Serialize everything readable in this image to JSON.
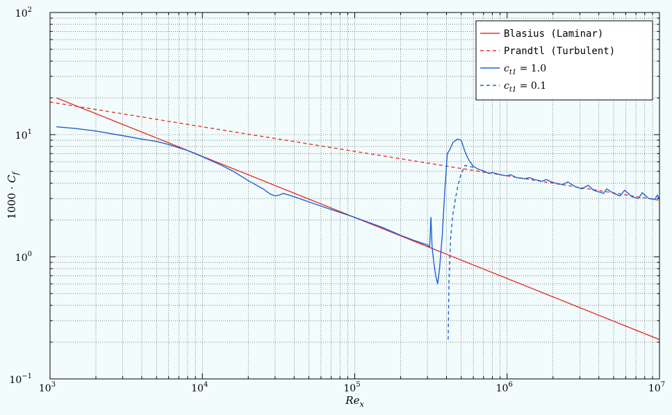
{
  "chart_data": {
    "type": "line",
    "xscale": "log",
    "yscale": "log",
    "xlim": [
      1000,
      10000000
    ],
    "ylim": [
      0.1,
      100
    ],
    "grid": true,
    "xlabel": "Re_x",
    "ylabel": "1000 · C_f",
    "legend_position": "top-right",
    "x_ticks": [
      {
        "base": "10",
        "exp": "3",
        "value": 1000
      },
      {
        "base": "10",
        "exp": "4",
        "value": 10000
      },
      {
        "base": "10",
        "exp": "5",
        "value": 100000
      },
      {
        "base": "10",
        "exp": "6",
        "value": 1000000
      },
      {
        "base": "10",
        "exp": "7",
        "value": 10000000
      }
    ],
    "y_ticks": [
      {
        "base": "10",
        "exp": "−1",
        "value": 0.1
      },
      {
        "base": "10",
        "exp": "0",
        "value": 1
      },
      {
        "base": "10",
        "exp": "1",
        "value": 10
      },
      {
        "base": "10",
        "exp": "2",
        "value": 100
      }
    ],
    "series": [
      {
        "name": "Blasius (Laminar)",
        "color": "#e8322a",
        "dash": "solid",
        "points": [
          [
            1100,
            20.0
          ],
          [
            10000000,
            0.21
          ]
        ]
      },
      {
        "name": "Prandtl (Turbulent)",
        "color": "#e8322a",
        "dash": "dashed",
        "points": [
          [
            1000,
            18.5
          ],
          [
            10000,
            11.6
          ],
          [
            100000,
            7.3
          ],
          [
            1000000,
            4.6
          ],
          [
            10000000,
            2.9
          ]
        ]
      },
      {
        "name": "c_t1 = 1.0",
        "name_math": {
          "var": "c",
          "sub": "t1",
          "rest": " = 1.0"
        },
        "color": "#1f5fd6",
        "dash": "solid",
        "points": [
          [
            1100,
            11.6
          ],
          [
            1500,
            11.2
          ],
          [
            2000,
            10.7
          ],
          [
            3000,
            9.8
          ],
          [
            4000,
            9.2
          ],
          [
            5000,
            8.8
          ],
          [
            6000,
            8.3
          ],
          [
            8000,
            7.4
          ],
          [
            10000,
            6.6
          ],
          [
            13000,
            5.7
          ],
          [
            16000,
            5.0
          ],
          [
            20000,
            4.2
          ],
          [
            25000,
            3.6
          ],
          [
            28000,
            3.25
          ],
          [
            30000,
            3.15
          ],
          [
            32000,
            3.2
          ],
          [
            34000,
            3.3
          ],
          [
            40000,
            3.1
          ],
          [
            60000,
            2.6
          ],
          [
            100000,
            2.1
          ],
          [
            150000,
            1.75
          ],
          [
            200000,
            1.5
          ],
          [
            250000,
            1.35
          ],
          [
            300000,
            1.25
          ],
          [
            310000,
            1.2
          ],
          [
            316000,
            2.1
          ],
          [
            322000,
            1.2
          ],
          [
            330000,
            0.9
          ],
          [
            340000,
            0.7
          ],
          [
            350000,
            0.6
          ],
          [
            360000,
            0.8
          ],
          [
            375000,
            1.5
          ],
          [
            390000,
            3.5
          ],
          [
            405000,
            7.0
          ],
          [
            420000,
            7.5
          ],
          [
            440000,
            8.6
          ],
          [
            470000,
            9.2
          ],
          [
            500000,
            9.0
          ],
          [
            530000,
            7.2
          ],
          [
            560000,
            6.2
          ],
          [
            600000,
            5.5
          ],
          [
            650000,
            5.2
          ],
          [
            700000,
            5.05
          ],
          [
            760000,
            4.8
          ],
          [
            800000,
            4.9
          ],
          [
            900000,
            4.7
          ],
          [
            1000000,
            4.6
          ],
          [
            1050000,
            4.7
          ],
          [
            1150000,
            4.45
          ],
          [
            1300000,
            4.35
          ],
          [
            1400000,
            4.45
          ],
          [
            1500000,
            4.3
          ],
          [
            1700000,
            4.15
          ],
          [
            1800000,
            4.3
          ],
          [
            2000000,
            4.05
          ],
          [
            2300000,
            3.9
          ],
          [
            2500000,
            4.1
          ],
          [
            2800000,
            3.75
          ],
          [
            3100000,
            3.6
          ],
          [
            3400000,
            3.85
          ],
          [
            3700000,
            3.5
          ],
          [
            4300000,
            3.3
          ],
          [
            4500000,
            3.6
          ],
          [
            5000000,
            3.3
          ],
          [
            5500000,
            3.15
          ],
          [
            5900000,
            3.5
          ],
          [
            6600000,
            3.1
          ],
          [
            7300000,
            3.0
          ],
          [
            7700000,
            3.35
          ],
          [
            8500000,
            3.0
          ],
          [
            9300000,
            2.95
          ],
          [
            9700000,
            3.2
          ],
          [
            10000000,
            2.95
          ]
        ]
      },
      {
        "name": "c_t1 = 0.1",
        "name_math": {
          "var": "c",
          "sub": "t1",
          "rest": " = 0.1"
        },
        "color": "#1f5fd6",
        "dash": "dashed",
        "points": [
          [
            410000,
            0.21
          ],
          [
            415000,
            0.6
          ],
          [
            425000,
            1.4
          ],
          [
            440000,
            2.2
          ],
          [
            460000,
            3.1
          ],
          [
            480000,
            4.0
          ],
          [
            500000,
            4.8
          ],
          [
            530000,
            5.6
          ],
          [
            560000,
            5.5
          ],
          [
            600000,
            5.4
          ]
        ]
      }
    ]
  }
}
